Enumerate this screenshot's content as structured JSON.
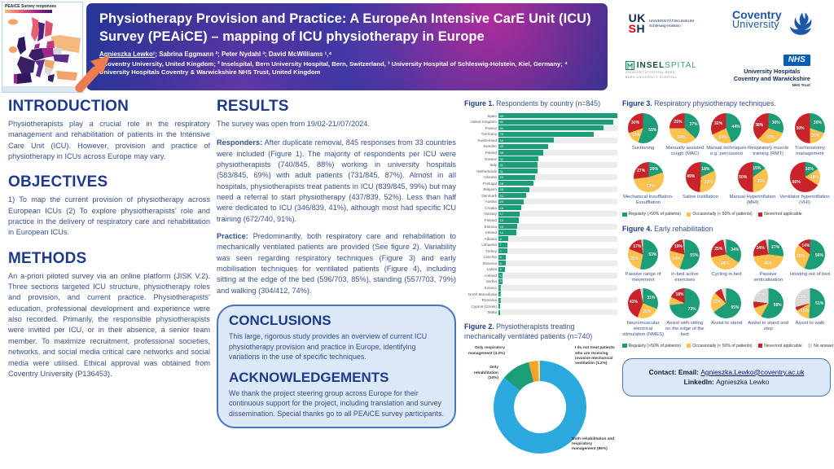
{
  "poster": {
    "map": {
      "title": "PEAiCE Survey responses"
    },
    "header": {
      "title": "Physiotherapy Provision and Practice: A EuropeAn Intensive CarE Unit (ICU) Survey (PEAiCE) – mapping of ICU physiotherapy in Europe",
      "author_first": "Agnieszka Lewko¹",
      "authors_rest": "; Sabrina Eggmann ²;  Peter Nydahl ³; David McWilliams ¹,⁴",
      "affiliations": "¹ Coventry University, United Kingdom; ² Inselspital, Bern University Hospital, Bern, Switzerland, ³ University Hospital of Schleswig-Holstein, Kiel, Germany; ⁴ University Hospitals Coventry & Warwickshire NHS Trust, United Kingdom"
    },
    "logos": {
      "uksh_top": "UK",
      "uksh_bottom_red": "S",
      "uksh_bottom": "H",
      "uksh_line1": "UNIVERSITÄTSKLINIKUM",
      "uksh_line2": "Schleswig-Holstein",
      "coventry_line1": "Coventry",
      "coventry_line2": "University",
      "insel_bold": "INSEL",
      "insel_lite": "SPITAL",
      "insel_sub1": "UNIVERSITÄTSSPITAL BERN",
      "insel_sub2": "BERN UNIVERSITY HOSPITAL",
      "nhs": "NHS",
      "nhs_line1": "University Hospitals",
      "nhs_line2": "Coventry and Warwickshire",
      "nhs_trust": "NHS Trust"
    },
    "sections": {
      "introduction": {
        "heading": "INTRODUCTION",
        "body": "Physiotherapists play a crucial role in the respiratory management and rehabilitation of patients in the Intensive Care Unit (ICU). However, provision and practice of physiotherapy in ICUs across Europe may vary."
      },
      "objectives": {
        "heading": "OBJECTIVES",
        "body": "1) To map the current provision of physiotherapy across European ICUs (2) To explore physiotherapists’ role and practice in the delivery of respiratory care and rehabilitation in European ICUs."
      },
      "methods": {
        "heading": "METHODS",
        "body": "An a-priori piloted survey via an online platform (JISK V.2). Three sections targeted ICU structure, physiotherapy roles and provision, and current practice. Physiotherapists’ education, professional development and experience were also recorded. Primarily, the responsible physiotherapists were invited per ICU, or in their absence, a senior team member. To maximize recruitment, professional societies, networks, and social media critical care networks and social media were utilised. Ethical approval was obtained from Coventry University (P136453)."
      },
      "results": {
        "heading": "RESULTS",
        "intro": "The survey was open from 19/02-21//07/2024.",
        "responders_label": "Responders:",
        "responders": " After duplicate removal, 845 responses from 33 countries were included (Figure 1). The majority of respondents per ICU were physiotherapists (740/845, 88%) working in university hospitals (583/845, 69%) with adult patients (731/845, 87%). Almost in all hospitals, physiotherapists treat patients in ICU (839/845, 99%) but may need a referral to start physiotherapy (437/839, 52%). Less than half were dedicated to ICU (346/839, 41%), although most had specific ICU training (672/740, 91%).",
        "practice_label": "Practice:",
        "practice": " Predominantly, both respiratory care and rehabilitation to mechanically ventilated patients are provided (See figure 2). Variability was seen regarding respiratory techniques (Figure 3) and early mobilisation techniques for ventilated patients (Figure 4), including sitting at the edge of the bed (596/703, 85%), standing (557/703, 79%) and walking (304/412, 74%)."
      },
      "conclusions": {
        "heading": "CONCLUSIONS",
        "body": "This large, rigorous study provides an overview of current ICU physiotherapy provision and practice in Europe, identifying variations in the use of specific techniques."
      },
      "acknowledgements": {
        "heading": "ACKNOWLEDGEMENTS",
        "body": "We thank the project steering group across Europe for their continuous support for the project, including translation and survey dissemination. Special thanks go to all PEAiCE survey participants."
      }
    },
    "contact": {
      "prefix": "Contact: ",
      "email_label": "Email: ",
      "email": "Agnieszka.Lewko@coventry.ac.uk",
      "linkedin_label": "LinkedIn: ",
      "linkedin": "Agnieszka Lewko"
    }
  },
  "chart_data": [
    {
      "id": "figure1",
      "type": "bar",
      "orientation": "horizontal",
      "title_bold": "Figure 1.",
      "title": " Respondents by country (n=845)",
      "bar_color": "#1b9e77",
      "categories": [
        "Spain",
        "United Kingdom",
        "France",
        "Germany",
        "Switzerland",
        "Sweden",
        "Poland",
        "Greece",
        "Italy",
        "Netherlands",
        "Ukraine",
        "Portugal",
        "Belgium",
        "Denmark",
        "Austria",
        "Croatia",
        "Norway",
        "Finland",
        "Estonia",
        "Ireland",
        "Albania",
        "Lithuania",
        "Turkey",
        "Czechia",
        "Slovenia",
        "Latvia",
        "Iceland",
        "Serbia",
        "Kosovo",
        "North Macedonia",
        "Romania",
        "Cyprus (Greek)",
        "Malta"
      ],
      "values": [
        95,
        92,
        84,
        76,
        44,
        40,
        36,
        32,
        31,
        31,
        29,
        28,
        25,
        22,
        20,
        18,
        17,
        16,
        15,
        14,
        8,
        7,
        7,
        6,
        6,
        5,
        3,
        3,
        2,
        2,
        2,
        1,
        1
      ]
    },
    {
      "id": "figure2",
      "type": "pie",
      "donut": true,
      "title_bold": "Figure 2.",
      "title": " Physiotherapists treating mechanically ventilated patients (n=740)",
      "slices": [
        {
          "label": "Both rehabilitation and respiratory management",
          "pct": 86,
          "color": "#2ba9dd",
          "callout": "br"
        },
        {
          "label": "Only rehabilitation",
          "pct": 10,
          "color": "#1b9e77",
          "callout": "l"
        },
        {
          "label": "Only respiratory management",
          "pct": 3.2,
          "color": "#f5a12b",
          "callout": "tl"
        },
        {
          "label": "I do not treat patients who are receiving invasive mechanical ventilation",
          "pct": 1.2,
          "color": "#fbd983",
          "callout": "tr"
        }
      ]
    },
    {
      "id": "figure3",
      "type": "pie-grid",
      "title_bold": "Figure 3.",
      "title": " Respiratory physiotherapy techniques.",
      "colors": [
        "#1b9e77",
        "#fdc24e",
        "#c9242b"
      ],
      "legend": [
        "Regularly (>50% of patients)",
        "Occasionally (< 50% of patients)",
        "Never/not applicable"
      ],
      "rows": [
        5,
        4
      ],
      "pies": [
        {
          "label": "Suctioning",
          "values": [
            55,
            15,
            30
          ]
        },
        {
          "label": "Manually assisted cough (MAC)",
          "values": [
            37,
            38,
            25
          ]
        },
        {
          "label": "Manual techniques e.g. percussion",
          "values": [
            44,
            24,
            32
          ]
        },
        {
          "label": "Respiratory muscle training (RMT)",
          "values": [
            30,
            32,
            38
          ]
        },
        {
          "label": "Tracheostomy management",
          "values": [
            30,
            20,
            50
          ]
        },
        {
          "label": "Mechanical Insufflation-Exsufflation",
          "values": [
            20,
            53,
            27
          ]
        },
        {
          "label": "Saline instillation",
          "values": [
            18,
            33,
            49
          ]
        },
        {
          "label": "Manual Hyperinflation (MHI)",
          "values": [
            15,
            35,
            50
          ]
        },
        {
          "label": "Ventilator hyperinflation (VHI)",
          "values": [
            16,
            18,
            66
          ]
        }
      ]
    },
    {
      "id": "figure4",
      "type": "pie-grid",
      "title_bold": "Figure 4.",
      "title": " Early rehabilitation",
      "colors": [
        "#1b9e77",
        "#fdc24e",
        "#c9242b",
        "#d9d9d9"
      ],
      "legend": [
        "Regularly (>50% of patients)",
        "Occasionally (< 50% of patients)",
        "Never/not applicable",
        "No answer"
      ],
      "rows": [
        5,
        5
      ],
      "pies": [
        {
          "label": "Passive range of movemnet",
          "values": [
            53,
            28,
            17,
            2
          ]
        },
        {
          "label": "in-bed active exercises",
          "values": [
            55,
            24,
            19,
            2
          ]
        },
        {
          "label": "Cycling in bed",
          "values": [
            34,
            38,
            25,
            3
          ]
        },
        {
          "label": "Passive verticalisation",
          "values": [
            27,
            46,
            24,
            3
          ]
        },
        {
          "label": "Hoisting out of bed",
          "values": [
            56,
            30,
            14,
            0
          ]
        },
        {
          "label": "Neuromuscular electrical stimulation (NMES)",
          "values": [
            31,
            25,
            41,
            3
          ]
        },
        {
          "label": "Assist with sitting on the edge of the bed",
          "values": [
            73,
            9,
            18,
            0
          ]
        },
        {
          "label": "Assist to stand",
          "values": [
            65,
            22,
            8,
            5
          ]
        },
        {
          "label": "Assist to stand and step",
          "values": [
            58,
            12,
            7,
            23
          ]
        },
        {
          "label": "Assist to walk",
          "values": [
            51,
            16,
            4,
            29
          ]
        }
      ]
    }
  ]
}
